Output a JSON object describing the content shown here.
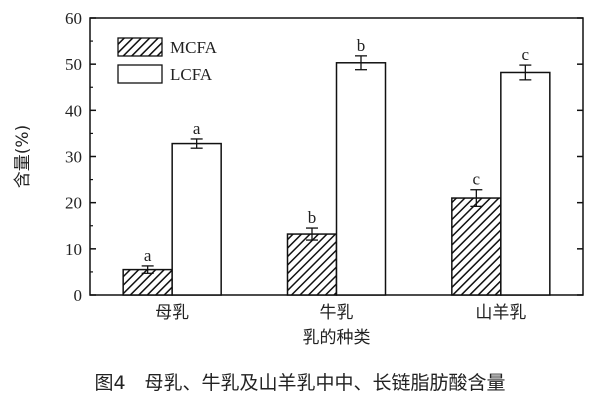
{
  "caption": "图4　母乳、牛乳及山羊乳中中、长链脂肪酸含量",
  "chart_data": {
    "type": "bar",
    "categories": [
      "母乳",
      "牛乳",
      "山羊乳"
    ],
    "xlabel": "乳的种类",
    "ylabel": "含量(%)",
    "ylim": [
      0,
      60
    ],
    "yticks": [
      0,
      10,
      20,
      30,
      40,
      50,
      60
    ],
    "legend_position": "top-left",
    "series": [
      {
        "name": "MCFA",
        "pattern": "hatched",
        "values": [
          5.5,
          13.2,
          21.0
        ],
        "errors": [
          0.8,
          1.3,
          1.8
        ],
        "labels": [
          "a",
          "b",
          "c"
        ]
      },
      {
        "name": "LCFA",
        "pattern": "white",
        "values": [
          32.8,
          50.3,
          48.2
        ],
        "errors": [
          1.0,
          1.5,
          1.6
        ],
        "labels": [
          "a",
          "b",
          "c"
        ]
      }
    ]
  }
}
